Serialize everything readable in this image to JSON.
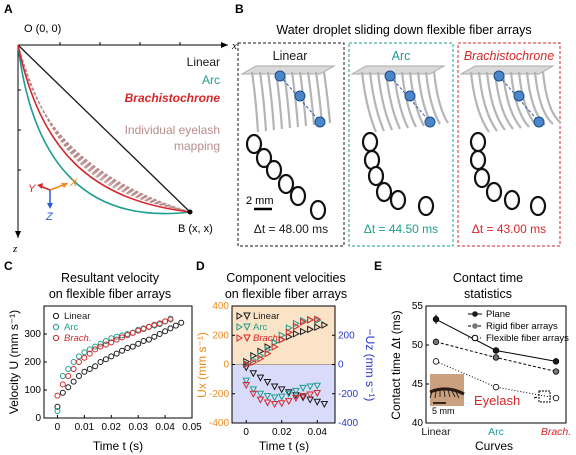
{
  "panels": {
    "A": {
      "letter": "A",
      "origin": "O (0, 0)",
      "x_axis": "x",
      "z_axis": "z",
      "endpoint": "B (x, x)",
      "legend": {
        "linear": "Linear",
        "arc": "Arc",
        "brach": "Brachistochrone",
        "lash1": "Individual eyelash",
        "lash2": "mapping"
      },
      "coords": {
        "y": "Y",
        "x": "X",
        "z": "Z"
      },
      "colors": {
        "linear": "#1a1a1a",
        "arc": "#1f9e8f",
        "brach": "#d7262a",
        "lash": "#b98d8d"
      }
    },
    "B": {
      "letter": "B",
      "title": "Water droplet sliding down flexible fiber arrays",
      "cols": [
        {
          "name": "Linear",
          "dt": "Δt = 48.00 ms",
          "color": "#1a1a1a"
        },
        {
          "name": "Arc",
          "dt": "Δt = 44.50 ms",
          "color": "#1f9e8f"
        },
        {
          "name": "Brachistochrone",
          "dt": "Δt = 43.00 ms",
          "color": "#d7262a"
        }
      ],
      "scale": "2 mm"
    },
    "C": {
      "letter": "C",
      "title1": "Resultant velocity",
      "title2": "on flexible fiber arrays",
      "ylabel": "Velocity U (mm s⁻¹)",
      "xlabel": "Time t (s)",
      "legend": [
        "Linear",
        "Arc",
        "Brach."
      ]
    },
    "D": {
      "letter": "D",
      "title1": "Component velocities",
      "title2": "on flexible fiber arrays",
      "ylabel_left": "Ux (mm s⁻¹)",
      "ylabel_right": "−Uz (mm s⁻¹)",
      "xlabel": "Time t (s)",
      "legend": [
        "Linear",
        "Arc",
        "Brach."
      ]
    },
    "E": {
      "letter": "E",
      "title1": "Contact time",
      "title2": "statistics",
      "ylabel": "Contact time Δt (ms)",
      "xlabel": "Curves",
      "legend": [
        "Plane",
        "Rigid fiber arrays",
        "Flexible fiber arrays"
      ],
      "inset_label": "Eyelash",
      "inset_scale": "5 mm"
    }
  },
  "chart_data": [
    {
      "type": "scatter",
      "panel": "C",
      "title": "Resultant velocity on flexible fiber arrays",
      "xlabel": "Time t (s)",
      "ylabel": "Velocity U (mm s⁻¹)",
      "xlim": [
        -0.005,
        0.05
      ],
      "ylim": [
        0,
        400
      ],
      "xticks": [
        0,
        0.01,
        0.02,
        0.03,
        0.04,
        0.05
      ],
      "yticks": [
        0,
        100,
        200,
        300,
        400
      ],
      "series": [
        {
          "name": "Linear",
          "color": "#1a1a1a",
          "marker": "circle",
          "x": [
            0.0,
            0.002,
            0.004,
            0.006,
            0.008,
            0.01,
            0.012,
            0.014,
            0.016,
            0.018,
            0.02,
            0.022,
            0.024,
            0.026,
            0.028,
            0.03,
            0.032,
            0.034,
            0.036,
            0.038,
            0.04,
            0.042,
            0.044,
            0.046
          ],
          "y": [
            40,
            90,
            110,
            130,
            150,
            165,
            175,
            185,
            200,
            210,
            220,
            230,
            240,
            250,
            255,
            265,
            275,
            280,
            290,
            300,
            310,
            320,
            330,
            340
          ]
        },
        {
          "name": "Arc",
          "color": "#1f9e8f",
          "marker": "circle",
          "x": [
            0.0,
            0.002,
            0.004,
            0.006,
            0.008,
            0.01,
            0.012,
            0.014,
            0.016,
            0.018,
            0.02,
            0.022,
            0.024,
            0.026,
            0.028,
            0.03,
            0.032,
            0.034,
            0.036,
            0.038,
            0.04,
            0.042
          ],
          "y": [
            25,
            150,
            175,
            200,
            220,
            235,
            245,
            255,
            265,
            275,
            285,
            290,
            295,
            300,
            305,
            315,
            320,
            325,
            330,
            335,
            345,
            355
          ]
        },
        {
          "name": "Brach.",
          "color": "#d7262a",
          "marker": "circle",
          "x": [
            0.0,
            0.002,
            0.004,
            0.006,
            0.008,
            0.01,
            0.012,
            0.014,
            0.016,
            0.018,
            0.02,
            0.022,
            0.024,
            0.026,
            0.028,
            0.03,
            0.032,
            0.034,
            0.036,
            0.038,
            0.04,
            0.042
          ],
          "y": [
            80,
            120,
            150,
            175,
            200,
            215,
            230,
            245,
            255,
            262,
            270,
            280,
            288,
            296,
            304,
            312,
            318,
            326,
            333,
            338,
            345,
            352
          ]
        }
      ]
    },
    {
      "type": "scatter",
      "panel": "D",
      "title": "Component velocities on flexible fiber arrays",
      "xlabel": "Time t (s)",
      "ylabel_left": "Ux (mm s⁻¹)",
      "ylabel_right": "−Uz (mm s⁻¹)",
      "xlim": [
        -0.008,
        0.05
      ],
      "ylim_left": [
        -400,
        400
      ],
      "ylim_right": [
        -400,
        400
      ],
      "xticks": [
        0,
        0.02,
        0.04
      ],
      "yticks_left": [
        -400,
        -200,
        0,
        200,
        400
      ],
      "yticks_right": [
        -400,
        -200,
        0,
        200
      ],
      "series": [
        {
          "name": "Linear Ux",
          "color": "#1a1a1a",
          "marker": "triangle-right",
          "x": [
            0.0,
            0.004,
            0.008,
            0.012,
            0.016,
            0.02,
            0.024,
            0.028,
            0.032,
            0.036,
            0.04,
            0.044
          ],
          "y": [
            20,
            60,
            90,
            120,
            150,
            170,
            190,
            210,
            225,
            240,
            255,
            270
          ]
        },
        {
          "name": "Linear −Uz",
          "color": "#1a1a1a",
          "marker": "triangle-down",
          "x": [
            0.0,
            0.004,
            0.008,
            0.012,
            0.016,
            0.02,
            0.024,
            0.028,
            0.032,
            0.036,
            0.04,
            0.044
          ],
          "y": [
            -20,
            -60,
            -90,
            -120,
            -150,
            -170,
            -190,
            -210,
            -225,
            -240,
            -255,
            -270
          ]
        },
        {
          "name": "Arc Ux",
          "color": "#1f9e8f",
          "marker": "triangle-right",
          "x": [
            0.0,
            0.004,
            0.008,
            0.012,
            0.016,
            0.02,
            0.024,
            0.028,
            0.032,
            0.036,
            0.04
          ],
          "y": [
            5,
            30,
            60,
            100,
            150,
            200,
            250,
            280,
            300,
            305,
            300
          ]
        },
        {
          "name": "Arc −Uz",
          "color": "#1f9e8f",
          "marker": "triangle-down",
          "x": [
            0.0,
            0.004,
            0.008,
            0.012,
            0.016,
            0.02,
            0.024,
            0.028,
            0.032,
            0.036,
            0.04
          ],
          "y": [
            -110,
            -170,
            -200,
            -215,
            -225,
            -220,
            -200,
            -180,
            -160,
            -150,
            -145
          ]
        },
        {
          "name": "Brach. Ux",
          "color": "#d7262a",
          "marker": "triangle-right",
          "x": [
            0.0,
            0.004,
            0.008,
            0.012,
            0.016,
            0.02,
            0.024,
            0.028,
            0.032,
            0.036,
            0.04
          ],
          "y": [
            0,
            15,
            40,
            75,
            120,
            170,
            220,
            260,
            290,
            305,
            310
          ]
        },
        {
          "name": "Brach. −Uz",
          "color": "#d7262a",
          "marker": "triangle-down",
          "x": [
            0.0,
            0.004,
            0.008,
            0.012,
            0.016,
            0.02,
            0.024,
            0.028,
            0.032,
            0.036,
            0.04
          ],
          "y": [
            -140,
            -200,
            -240,
            -260,
            -270,
            -265,
            -250,
            -230,
            -215,
            -205,
            -195
          ]
        }
      ]
    },
    {
      "type": "line",
      "panel": "E",
      "title": "Contact time statistics",
      "xlabel": "Curves",
      "ylabel": "Contact time Δt (ms)",
      "categories": [
        "Linear",
        "Arc",
        "Brach."
      ],
      "category_colors": [
        "#1a1a1a",
        "#1f9e8f",
        "#d7262a"
      ],
      "ylim": [
        40,
        55
      ],
      "yticks": [
        40,
        45,
        50,
        55
      ],
      "series": [
        {
          "name": "Plane",
          "marker": "filled-circle",
          "line": "solid",
          "values": [
            53.3,
            49.3,
            47.9
          ],
          "err": [
            0.6,
            0.4,
            0.3
          ]
        },
        {
          "name": "Rigid fiber arrays",
          "marker": "filled-gray",
          "line": "dashed",
          "values": [
            50.4,
            48.4,
            46.6
          ],
          "err": [
            0.4,
            0.3,
            0.3
          ]
        },
        {
          "name": "Flexible fiber arrays",
          "marker": "open-circle",
          "line": "dotted",
          "values": [
            47.9,
            44.6,
            43.2
          ],
          "err": [
            0.3,
            0.3,
            0.3
          ]
        }
      ]
    }
  ]
}
